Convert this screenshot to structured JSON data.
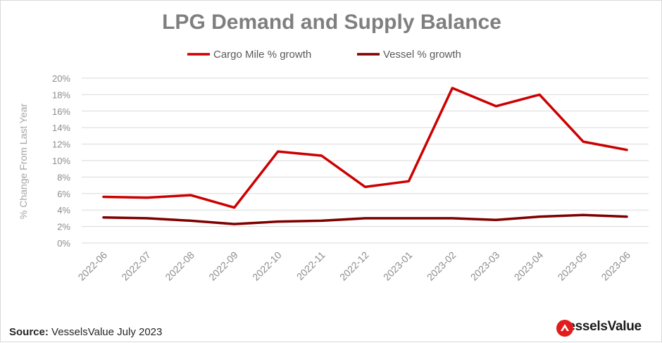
{
  "chart_data": {
    "type": "line",
    "title": "LPG Demand and Supply Balance",
    "xlabel": "",
    "ylabel": "% Change From Last Year",
    "categories": [
      "2022-06",
      "2022-07",
      "2022-08",
      "2022-09",
      "2022-10",
      "2022-11",
      "2022-12",
      "2023-01",
      "2023-02",
      "2023-03",
      "2023-04",
      "2023-05",
      "2023-06"
    ],
    "ylim": [
      0,
      20
    ],
    "yticks": [
      "0%",
      "2%",
      "4%",
      "6%",
      "8%",
      "10%",
      "12%",
      "14%",
      "16%",
      "18%",
      "20%"
    ],
    "grid": true,
    "legend_position": "top-center",
    "series": [
      {
        "name": "Cargo Mile % growth",
        "color": "#cc0000",
        "values": [
          5.6,
          5.5,
          5.8,
          4.3,
          11.1,
          10.6,
          6.8,
          7.5,
          18.8,
          16.6,
          18.0,
          12.3,
          11.3
        ]
      },
      {
        "name": "Vessel % growth",
        "color": "#7f0000",
        "values": [
          3.1,
          3.0,
          2.7,
          2.3,
          2.6,
          2.7,
          3.0,
          3.0,
          3.0,
          2.8,
          3.2,
          3.4,
          3.2
        ]
      }
    ]
  },
  "footer": {
    "source_label": "Source:",
    "source_text": "VesselsValue July 2023"
  },
  "brand": {
    "name": "VesselsValue",
    "color": "#e21c1c"
  }
}
